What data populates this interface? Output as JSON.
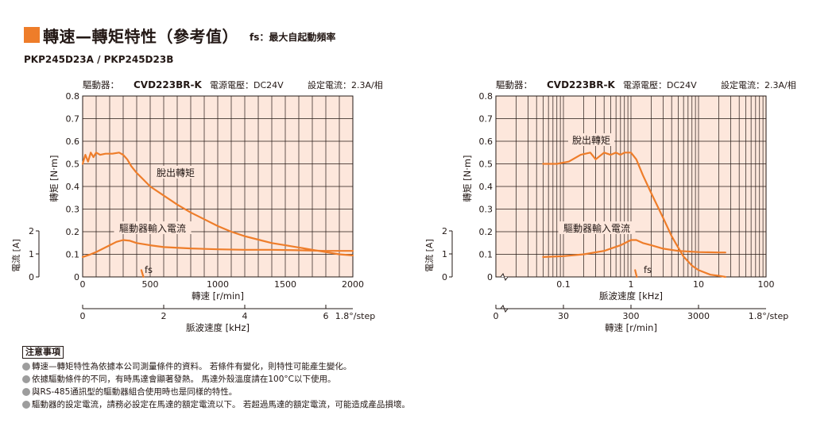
{
  "header": {
    "title": "轉速—轉矩特性（參考值）",
    "subtitle": "fs：最大自起動頻率"
  },
  "model_line": "PKP245D23A / PKP245D23B",
  "notes": {
    "title": "注意事項",
    "items": [
      "轉速—轉矩特性為依據本公司測量條件的資料。 若條件有變化，則特性可能產生變化。",
      "依據驅動條件的不同，有時馬達會顯著發熱。 馬達外殼溫度請在100°C以下使用。",
      "與RS-485通訊型的驅動器組合使用時也是同樣的特性。",
      "驅動器的設定電流，請務必設定在馬達的額定電流以下。 若超過馬達的額定電流，可能造成產品損壞。"
    ]
  },
  "colors": {
    "curve": "#ee7d2a",
    "plot_bg": "#fde7dc",
    "grid": "#231815",
    "bullet": "#9d9d9d"
  },
  "chart_data": [
    {
      "type": "line",
      "driver_label": "驅動器：",
      "driver_model": "CVD223BR-K",
      "power_label": "電源電壓：DC24V",
      "current_label": "設定電流：2.3A/相",
      "ylabel": "轉矩 [N·m]",
      "y_ticks": [
        "0",
        "0.1",
        "0.2",
        "0.3",
        "0.4",
        "0.5",
        "0.6",
        "0.7",
        "0.8"
      ],
      "ylim": [
        0,
        0.8
      ],
      "xlabel": "轉速 [r/min]",
      "x_ticks": [
        "0",
        "500",
        "1000",
        "1500",
        "2000"
      ],
      "xlim": [
        0,
        2000
      ],
      "x2label": "脈波速度 [kHz]",
      "x2_ticks": [
        "0",
        "2",
        "4",
        "6"
      ],
      "x2_unit": "1.8°/step",
      "current_axis_label": "電流 [A]",
      "current_ticks": [
        "0",
        "1",
        "2"
      ],
      "series": [
        {
          "name": "脫出轉矩",
          "x": [
            0,
            20,
            40,
            60,
            80,
            100,
            130,
            170,
            220,
            270,
            300,
            330,
            360,
            400,
            450,
            500,
            600,
            700,
            800,
            900,
            1000,
            1100,
            1200,
            1300,
            1400,
            1500,
            1600,
            1700,
            1800,
            1900,
            2000
          ],
          "y": [
            0.5,
            0.54,
            0.51,
            0.55,
            0.53,
            0.55,
            0.54,
            0.545,
            0.545,
            0.55,
            0.54,
            0.52,
            0.49,
            0.46,
            0.43,
            0.4,
            0.36,
            0.32,
            0.285,
            0.255,
            0.225,
            0.2,
            0.18,
            0.165,
            0.15,
            0.14,
            0.13,
            0.12,
            0.11,
            0.1,
            0.095
          ]
        },
        {
          "name": "驅動器輸入電流",
          "x": [
            0,
            50,
            100,
            150,
            200,
            250,
            300,
            350,
            400,
            500,
            600,
            800,
            1000,
            1200,
            1400,
            1600,
            1800,
            2000
          ],
          "y": [
            0.088,
            0.098,
            0.11,
            0.125,
            0.14,
            0.155,
            0.163,
            0.16,
            0.15,
            0.14,
            0.132,
            0.126,
            0.122,
            0.12,
            0.12,
            0.118,
            0.115,
            0.115
          ]
        },
        {
          "name": "fs",
          "x": [
            435,
            450
          ],
          "y": [
            0.03,
            0.0
          ]
        }
      ]
    },
    {
      "type": "line",
      "x_scale": "log",
      "driver_label": "驅動器：",
      "driver_model": "CVD223BR-K",
      "power_label": "電源電壓：DC24V",
      "current_label": "設定電流：2.3A/相",
      "ylabel": "轉矩 [N·m]",
      "y_ticks": [
        "0",
        "0.1",
        "0.2",
        "0.3",
        "0.4",
        "0.5",
        "0.6",
        "0.7",
        "0.8"
      ],
      "ylim": [
        0,
        0.8
      ],
      "xlabel": "脈波速度 [kHz]",
      "x_ticks": [
        "0.1",
        "1",
        "10",
        "100"
      ],
      "xlim": [
        0.01,
        100
      ],
      "x2label": "轉速 [r/min]",
      "x2_ticks": [
        "0",
        "30",
        "300",
        "3000"
      ],
      "x2_unit": "1.8°/step",
      "current_axis_label": "電流 [A]",
      "current_ticks": [
        "0",
        "1",
        "2"
      ],
      "series": [
        {
          "name": "脫出轉矩",
          "x": [
            0.05,
            0.08,
            0.12,
            0.18,
            0.25,
            0.3,
            0.4,
            0.5,
            0.6,
            0.7,
            0.8,
            1.0,
            1.2,
            1.5,
            2.0,
            3.0,
            4.0,
            5.0,
            6.0,
            8.0,
            10,
            15,
            20,
            25
          ],
          "y": [
            0.5,
            0.5,
            0.51,
            0.54,
            0.55,
            0.52,
            0.55,
            0.54,
            0.55,
            0.54,
            0.55,
            0.55,
            0.52,
            0.45,
            0.37,
            0.26,
            0.18,
            0.13,
            0.09,
            0.05,
            0.03,
            0.01,
            0.005,
            0.0
          ]
        },
        {
          "name": "驅動器輸入電流",
          "x": [
            0.05,
            0.1,
            0.2,
            0.4,
            0.7,
            1.0,
            1.2,
            1.5,
            2.0,
            3.0,
            5.0,
            10,
            20,
            25
          ],
          "y": [
            0.088,
            0.092,
            0.1,
            0.115,
            0.14,
            0.163,
            0.163,
            0.15,
            0.14,
            0.125,
            0.115,
            0.11,
            0.108,
            0.108
          ]
        },
        {
          "name": "fs",
          "x": [
            1.15,
            1.22
          ],
          "y": [
            0.03,
            0.0
          ]
        }
      ]
    }
  ]
}
